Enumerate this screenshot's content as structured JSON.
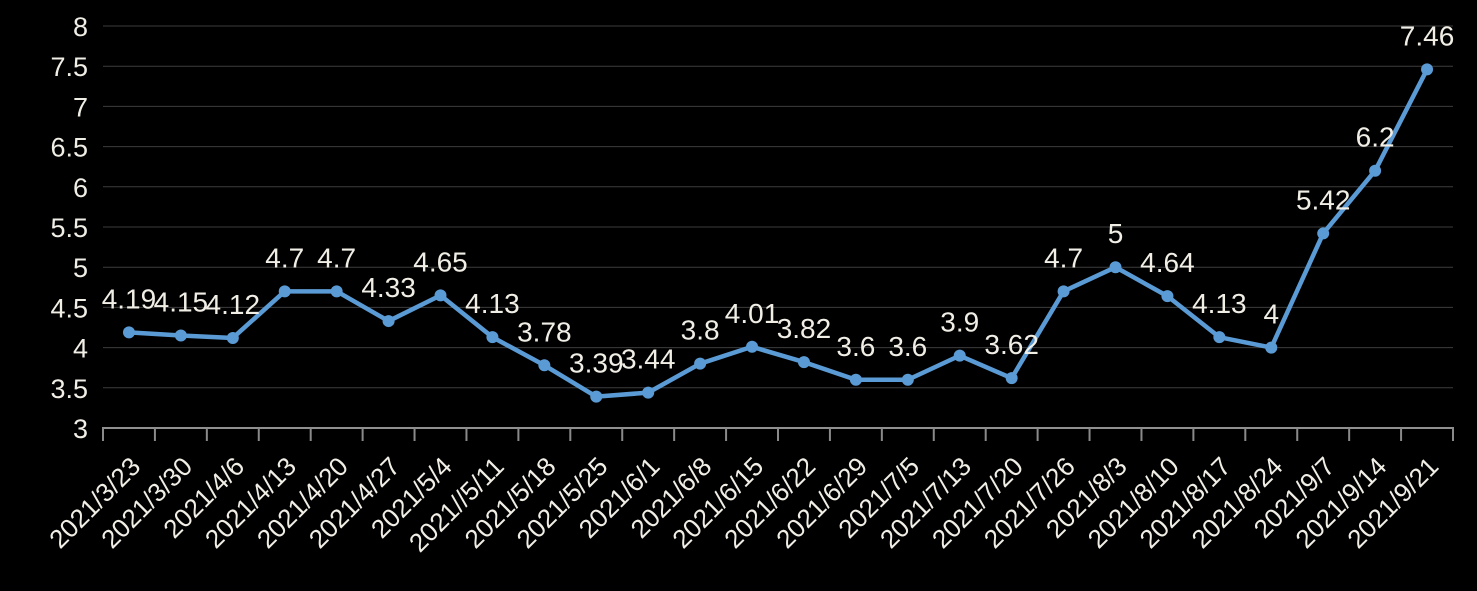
{
  "colors": {
    "background": "#000000",
    "series": "#5B9BD5",
    "grid": "#3d3d3d",
    "axis_line": "#909090",
    "tick": "#8a8a8a",
    "data_label_text": "#F1EEE6",
    "axis_tick_text": "#F1EEE6"
  },
  "chart_data": {
    "type": "line",
    "title": "",
    "xlabel": "",
    "ylabel": "",
    "legend": "none",
    "grid": "horizontal",
    "marker": "circle",
    "x_label_rotation": 45,
    "ylim": [
      3,
      8
    ],
    "ytick_interval": 0.5,
    "ytick_labels": [
      "3",
      "3.5",
      "4",
      "4.5",
      "5",
      "5.5",
      "6",
      "6.5",
      "7",
      "7.5",
      "8"
    ],
    "categories": [
      "2021/3/23",
      "2021/3/30",
      "2021/4/6",
      "2021/4/13",
      "2021/4/20",
      "2021/4/27",
      "2021/5/4",
      "2021//5/11",
      "2021/5/18",
      "2021/5/25",
      "2021/6/1",
      "2021/6/8",
      "2021/6/15",
      "2021/6/22",
      "2021/6/29",
      "2021/7/5",
      "2021/7/13",
      "2021/7/20",
      "2021/7/26",
      "2021/8/3",
      "2021/8/10",
      "2021/8/17",
      "2021/8/24",
      "2021/9/7",
      "2021/9/14",
      "2021/9/21"
    ],
    "values": [
      4.19,
      4.15,
      4.12,
      4.7,
      4.7,
      4.33,
      4.65,
      4.13,
      3.78,
      3.39,
      3.44,
      3.8,
      4.01,
      3.82,
      3.6,
      3.6,
      3.9,
      3.62,
      4.7,
      5,
      4.64,
      4.13,
      4,
      5.42,
      6.2,
      7.46
    ],
    "point_labels": [
      "4.19",
      "4.15",
      "4.12",
      "4.7",
      "4.7",
      "4.33",
      "4.65",
      "4.13",
      "3.78",
      "3.39",
      "3.44",
      "3.8",
      "4.01",
      "3.82",
      "3.6",
      "3.6",
      "3.9",
      "3.62",
      "4.7",
      "5",
      "4.64",
      "4.13",
      "4",
      "5.42",
      "6.2",
      "7.46"
    ]
  }
}
